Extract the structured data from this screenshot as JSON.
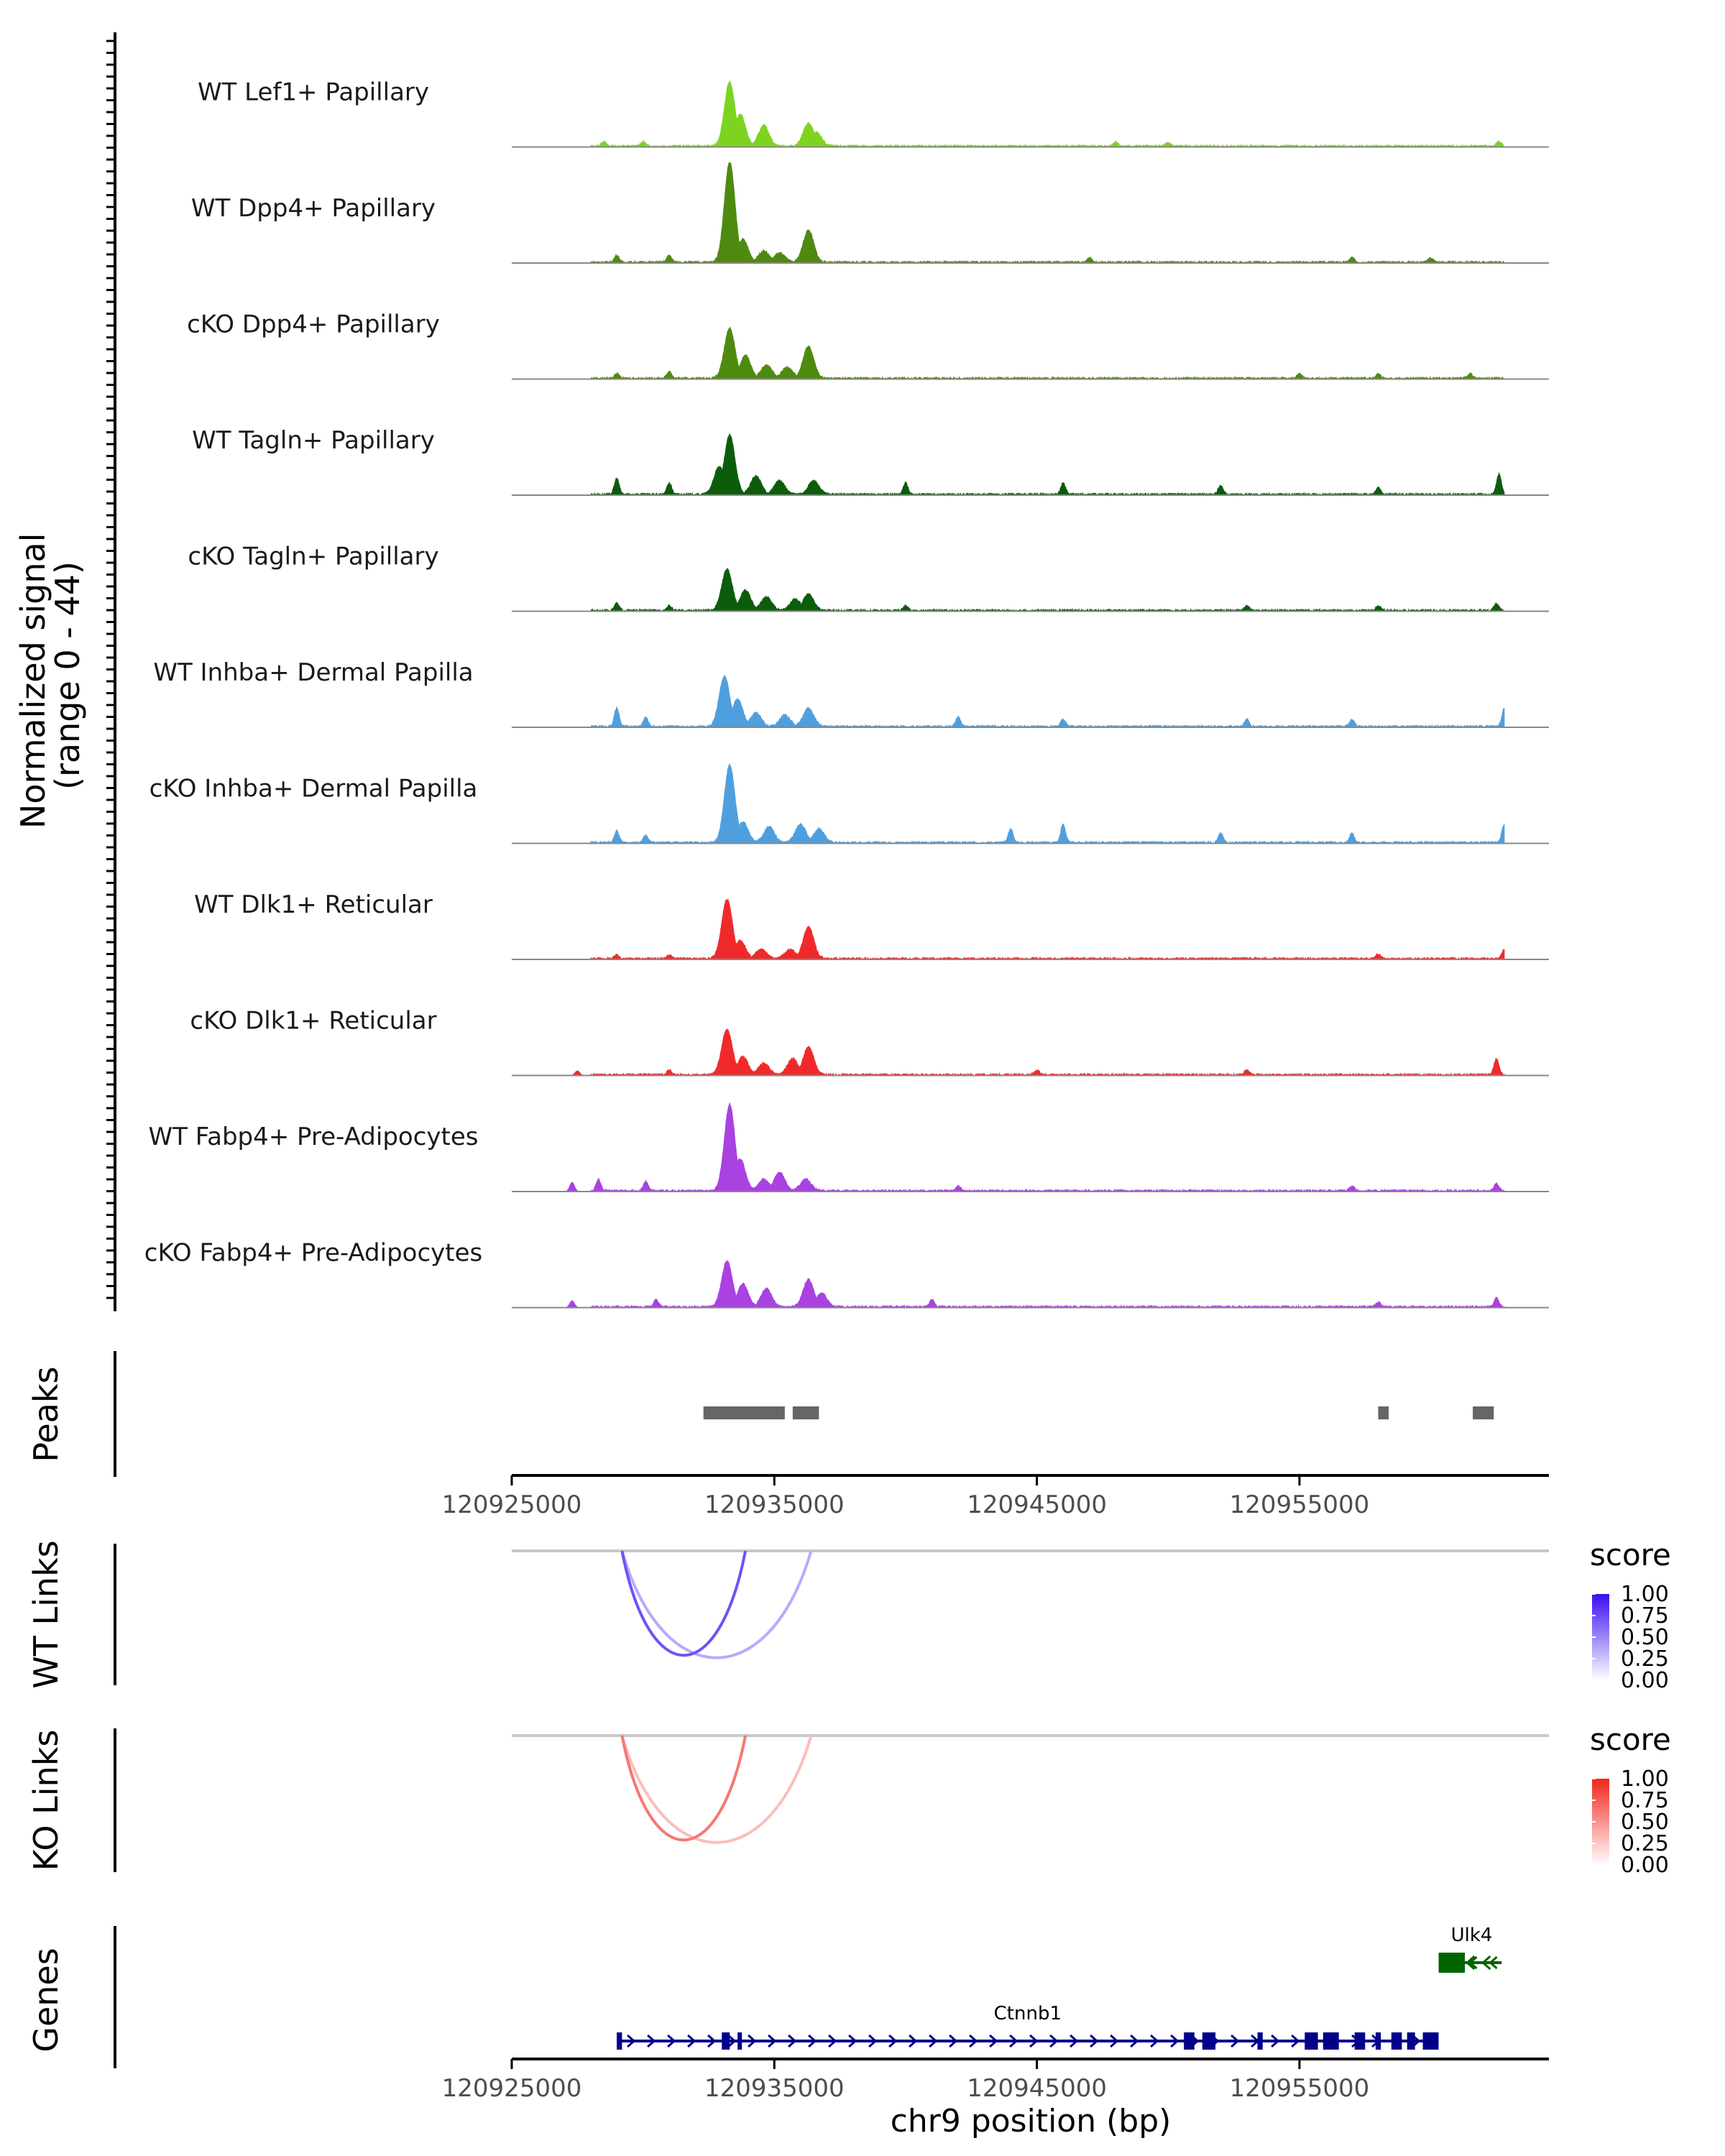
{
  "chart_data": {
    "type": "area",
    "region": {
      "chromosome": "chr9",
      "start": 120925000,
      "end": 120964500
    },
    "coverage": {
      "ylabel_line1": "Normalized signal",
      "ylabel_line2": "(range 0 - 44)",
      "ylim": [
        0,
        44
      ],
      "tracks": [
        {
          "name": "WT Lef1+ Papillary",
          "color": "#7ed321",
          "peaks": [
            [
              120933300,
              28
            ],
            [
              120933700,
              14
            ],
            [
              120934600,
              9
            ],
            [
              120936300,
              10
            ],
            [
              120936600,
              6
            ]
          ],
          "noise": [
            [
              120928500,
              2
            ],
            [
              120930000,
              2
            ],
            [
              120948000,
              2
            ],
            [
              120950000,
              1.5
            ],
            [
              120962600,
              2
            ]
          ]
        },
        {
          "name": "WT Dpp4+ Papillary",
          "color": "#4f8a10",
          "peaks": [
            [
              120933300,
              44
            ],
            [
              120933800,
              10
            ],
            [
              120934600,
              5
            ],
            [
              120936300,
              14
            ],
            [
              120935200,
              4
            ]
          ],
          "noise": [
            [
              120929000,
              3
            ],
            [
              120931000,
              3
            ],
            [
              120947000,
              2
            ],
            [
              120957000,
              2
            ],
            [
              120960000,
              2
            ]
          ]
        },
        {
          "name": "cKO Dpp4+ Papillary",
          "color": "#4f8a10",
          "peaks": [
            [
              120933300,
              22
            ],
            [
              120933900,
              10
            ],
            [
              120934700,
              6
            ],
            [
              120936300,
              14
            ],
            [
              120935500,
              5
            ]
          ],
          "noise": [
            [
              120929000,
              2
            ],
            [
              120931000,
              3
            ],
            [
              120955000,
              2
            ],
            [
              120958000,
              2
            ],
            [
              120961500,
              2
            ]
          ]
        },
        {
          "name": "WT Tagln+ Papillary",
          "color": "#0b5d0b",
          "peaks": [
            [
              120933300,
              26
            ],
            [
              120932900,
              12
            ],
            [
              120934300,
              8
            ],
            [
              120935200,
              6
            ],
            [
              120936500,
              6
            ]
          ],
          "noise": [
            [
              120929000,
              7
            ],
            [
              120931000,
              5
            ],
            [
              120940000,
              5
            ],
            [
              120946000,
              5
            ],
            [
              120952000,
              4
            ],
            [
              120958000,
              3
            ],
            [
              120962600,
              9
            ]
          ]
        },
        {
          "name": "cKO Tagln+ Papillary",
          "color": "#0b5d0b",
          "peaks": [
            [
              120933200,
              18
            ],
            [
              120933900,
              9
            ],
            [
              120934700,
              6
            ],
            [
              120935800,
              5
            ],
            [
              120936300,
              7
            ]
          ],
          "noise": [
            [
              120929000,
              3
            ],
            [
              120931000,
              2
            ],
            [
              120940000,
              2
            ],
            [
              120953000,
              2
            ],
            [
              120958000,
              2
            ],
            [
              120962500,
              3
            ]
          ]
        },
        {
          "name": "WT Inhba+ Dermal Papilla",
          "color": "#4f9fdf",
          "peaks": [
            [
              120933100,
              22
            ],
            [
              120933600,
              12
            ],
            [
              120934300,
              6
            ],
            [
              120935400,
              5
            ],
            [
              120936300,
              8
            ]
          ],
          "noise": [
            [
              120929000,
              8
            ],
            [
              120930100,
              4
            ],
            [
              120942000,
              4
            ],
            [
              120946000,
              3
            ],
            [
              120953000,
              3
            ],
            [
              120957000,
              3
            ],
            [
              120962800,
              8
            ]
          ]
        },
        {
          "name": "cKO Inhba+ Dermal Papilla",
          "color": "#4f9fdf",
          "peaks": [
            [
              120933300,
              34
            ],
            [
              120933800,
              9
            ],
            [
              120934800,
              7
            ],
            [
              120936000,
              8
            ],
            [
              120936700,
              6
            ]
          ],
          "noise": [
            [
              120929000,
              5
            ],
            [
              120930100,
              3
            ],
            [
              120946000,
              8
            ],
            [
              120944000,
              6
            ],
            [
              120952000,
              4
            ],
            [
              120957000,
              4
            ],
            [
              120962800,
              8
            ]
          ]
        },
        {
          "name": "WT Dlk1+ Reticular",
          "color": "#f02a2a",
          "peaks": [
            [
              120933200,
              26
            ],
            [
              120933700,
              8
            ],
            [
              120934500,
              4
            ],
            [
              120935600,
              4
            ],
            [
              120936300,
              14
            ]
          ],
          "noise": [
            [
              120929000,
              1.5
            ],
            [
              120931000,
              1.5
            ],
            [
              120958000,
              2
            ],
            [
              120962800,
              4
            ]
          ]
        },
        {
          "name": "cKO Dlk1+ Reticular",
          "color": "#f02a2a",
          "peaks": [
            [
              120933200,
              20
            ],
            [
              120933800,
              8
            ],
            [
              120934600,
              5
            ],
            [
              120935700,
              7
            ],
            [
              120936300,
              12
            ]
          ],
          "noise": [
            [
              120927500,
              2
            ],
            [
              120931000,
              2
            ],
            [
              120945000,
              2
            ],
            [
              120953000,
              2
            ],
            [
              120962500,
              7
            ]
          ]
        },
        {
          "name": "WT Fabp4+ Pre-Adipocytes",
          "color": "#a942e0",
          "peaks": [
            [
              120933300,
              38
            ],
            [
              120933700,
              14
            ],
            [
              120934600,
              5
            ],
            [
              120935200,
              8
            ],
            [
              120936200,
              5
            ]
          ],
          "noise": [
            [
              120927300,
              4
            ],
            [
              120928300,
              5
            ],
            [
              120930100,
              4
            ],
            [
              120942000,
              2
            ],
            [
              120957000,
              2
            ],
            [
              120962500,
              3
            ]
          ]
        },
        {
          "name": "cKO Fabp4+ Pre-Adipocytes",
          "color": "#a942e0",
          "peaks": [
            [
              120933200,
              20
            ],
            [
              120933800,
              10
            ],
            [
              120934700,
              8
            ],
            [
              120936300,
              12
            ],
            [
              120936800,
              6
            ]
          ],
          "noise": [
            [
              120927300,
              3
            ],
            [
              120930500,
              3
            ],
            [
              120941000,
              3
            ],
            [
              120958000,
              2
            ],
            [
              120962500,
              4
            ]
          ]
        }
      ]
    },
    "peaks_track": {
      "label": "Peaks",
      "color": "#666666",
      "regions": [
        [
          120932300,
          120935400
        ],
        [
          120935700,
          120936700
        ],
        [
          120958000,
          120958400
        ],
        [
          120961600,
          120962400
        ]
      ]
    },
    "x_axis": {
      "ticks": [
        120925000,
        120935000,
        120945000,
        120955000
      ],
      "tick_labels": [
        "120925000",
        "120935000",
        "120945000",
        "120955000"
      ],
      "title": "chr9 position (bp)"
    },
    "links": [
      {
        "label": "WT Links",
        "legend_title": "score",
        "color_low": "#ffffff",
        "color_high": "#3a0df2",
        "legend_ticks": [
          "1.00",
          "0.75",
          "0.50",
          "0.25",
          "0.00"
        ],
        "arcs": [
          {
            "start": 120929200,
            "end": 120933900,
            "score": 0.72
          },
          {
            "start": 120929200,
            "end": 120936400,
            "score": 0.35
          }
        ]
      },
      {
        "label": "KO Links",
        "legend_title": "score",
        "color_low": "#ffffff",
        "color_high": "#f0261d",
        "legend_ticks": [
          "1.00",
          "0.75",
          "0.50",
          "0.25",
          "0.00"
        ],
        "arcs": [
          {
            "start": 120929200,
            "end": 120933900,
            "score": 0.62
          },
          {
            "start": 120929200,
            "end": 120936400,
            "score": 0.3
          }
        ]
      }
    ],
    "genes_track": {
      "label": "Genes",
      "genes": [
        {
          "name": "Ctnnb1",
          "start": 120929000,
          "end": 120960300,
          "strand": "+",
          "color": "#00008b",
          "exons": [
            [
              120929000,
              120929200
            ],
            [
              120933000,
              120933300
            ],
            [
              120933600,
              120933700
            ],
            [
              120950600,
              120951000
            ],
            [
              120951300,
              120951800
            ],
            [
              120953400,
              120953600
            ],
            [
              120955200,
              120955700
            ],
            [
              120955900,
              120956500
            ],
            [
              120957100,
              120957500
            ],
            [
              120957900,
              120958100
            ],
            [
              120958500,
              120958900
            ],
            [
              120959100,
              120959400
            ],
            [
              120959700,
              120960300
            ]
          ]
        },
        {
          "name": "Ulk4",
          "start": 120960300,
          "end": 120962700,
          "strand": "-",
          "color": "#006400",
          "exons": [
            [
              120960300,
              120961300
            ]
          ]
        }
      ]
    }
  }
}
